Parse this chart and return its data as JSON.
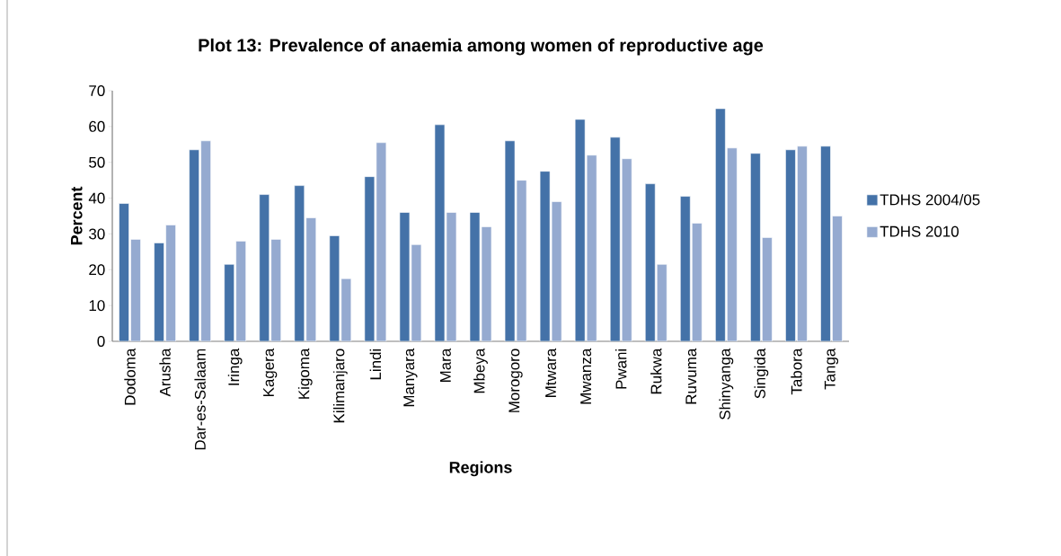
{
  "chart_data": {
    "type": "bar",
    "title": "Plot 13: Prevalence of anaemia among women of reproductive age",
    "xlabel": "Regions",
    "ylabel": "Percent",
    "categories": [
      "Dodoma",
      "Arusha",
      "Dar-es-Salaam",
      "Iringa",
      "Kagera",
      "Kigoma",
      "Kilimanjaro",
      "Lindi",
      "Manyara",
      "Mara",
      "Mbeya",
      "Morogoro",
      "Mtwara",
      "Mwanza",
      "Pwani",
      "Rukwa",
      "Ruvuma",
      "Shinyanga",
      "Singida",
      "Tabora",
      "Tanga"
    ],
    "series": [
      {
        "name": "TDHS 2004/05",
        "color": "#4472a8",
        "values": [
          38.5,
          27.5,
          53.5,
          21.5,
          41,
          43.5,
          29.5,
          46,
          36,
          60.5,
          36,
          56,
          47.5,
          62,
          57,
          44,
          40.5,
          65,
          52.5,
          53.5,
          54.5
        ]
      },
      {
        "name": "TDHS 2010",
        "color": "#95aad0",
        "values": [
          28.5,
          32.5,
          56,
          28,
          28.5,
          34.5,
          17.5,
          55.5,
          27,
          36,
          32,
          45,
          39,
          52,
          51,
          21.5,
          33,
          54,
          29,
          54.5,
          35
        ]
      }
    ],
    "ylim": [
      0,
      70
    ],
    "yticks": [
      0,
      10,
      20,
      30,
      40,
      50,
      60,
      70
    ],
    "grid": false,
    "legend": "right"
  }
}
